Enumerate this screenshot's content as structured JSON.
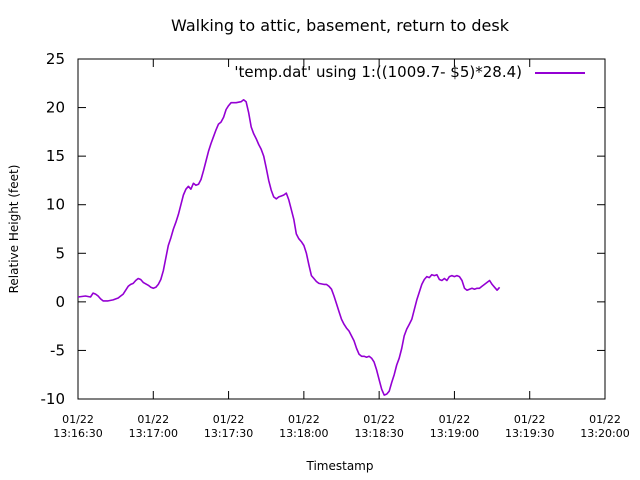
{
  "chart_data": {
    "type": "line",
    "title": "Walking to attic, basement, return to desk",
    "xlabel": "Timestamp",
    "ylabel": "Relative Height (feet)",
    "ylim": [
      -10,
      25
    ],
    "xlim": [
      "13:16:30",
      "13:20:00"
    ],
    "yticks": [
      "25",
      "20",
      "15",
      "10",
      "5",
      "0",
      "-5",
      "-10"
    ],
    "xticks": [
      {
        "date": "01/22",
        "time": "13:16:30"
      },
      {
        "date": "01/22",
        "time": "13:17:00"
      },
      {
        "date": "01/22",
        "time": "13:17:30"
      },
      {
        "date": "01/22",
        "time": "13:18:00"
      },
      {
        "date": "01/22",
        "time": "13:18:30"
      },
      {
        "date": "01/22",
        "time": "13:19:00"
      },
      {
        "date": "01/22",
        "time": "13:19:30"
      },
      {
        "date": "01/22",
        "time": "13:20:00"
      }
    ],
    "grid": false,
    "legend_position": "top-right",
    "series": [
      {
        "name": "'temp.dat'  using 1:((1009.7- $5)*28.4)",
        "color": "#9400d3",
        "points": [
          [
            "13:16:30",
            0.5
          ],
          [
            "13:16:33",
            0.6
          ],
          [
            "13:16:35",
            0.5
          ],
          [
            "13:16:36",
            0.9
          ],
          [
            "13:16:37",
            0.8
          ],
          [
            "13:16:38",
            0.6
          ],
          [
            "13:16:39",
            0.3
          ],
          [
            "13:16:40",
            0.1
          ],
          [
            "13:16:42",
            0.1
          ],
          [
            "13:16:44",
            0.2
          ],
          [
            "13:16:46",
            0.4
          ],
          [
            "13:16:47",
            0.6
          ],
          [
            "13:16:48",
            0.8
          ],
          [
            "13:16:49",
            1.2
          ],
          [
            "13:16:50",
            1.6
          ],
          [
            "13:16:51",
            1.8
          ],
          [
            "13:16:52",
            1.9
          ],
          [
            "13:16:53",
            2.2
          ],
          [
            "13:16:54",
            2.4
          ],
          [
            "13:16:55",
            2.3
          ],
          [
            "13:16:56",
            2.0
          ],
          [
            "13:16:58",
            1.7
          ],
          [
            "13:16:59",
            1.5
          ],
          [
            "13:17:00",
            1.4
          ],
          [
            "13:17:01",
            1.5
          ],
          [
            "13:17:02",
            1.8
          ],
          [
            "13:17:03",
            2.3
          ],
          [
            "13:17:04",
            3.2
          ],
          [
            "13:17:05",
            4.5
          ],
          [
            "13:17:06",
            5.8
          ],
          [
            "13:17:07",
            6.6
          ],
          [
            "13:17:08",
            7.5
          ],
          [
            "13:17:09",
            8.2
          ],
          [
            "13:17:10",
            9.0
          ],
          [
            "13:17:11",
            10.0
          ],
          [
            "13:17:12",
            11.0
          ],
          [
            "13:17:13",
            11.6
          ],
          [
            "13:17:14",
            11.9
          ],
          [
            "13:17:15",
            11.6
          ],
          [
            "13:17:16",
            12.2
          ],
          [
            "13:17:17",
            12.0
          ],
          [
            "13:17:18",
            12.1
          ],
          [
            "13:17:19",
            12.6
          ],
          [
            "13:17:20",
            13.5
          ],
          [
            "13:17:21",
            14.5
          ],
          [
            "13:17:22",
            15.5
          ],
          [
            "13:17:23",
            16.3
          ],
          [
            "13:17:24",
            17.0
          ],
          [
            "13:17:25",
            17.7
          ],
          [
            "13:17:26",
            18.3
          ],
          [
            "13:17:27",
            18.5
          ],
          [
            "13:17:28",
            19.0
          ],
          [
            "13:17:29",
            19.8
          ],
          [
            "13:17:30",
            20.2
          ],
          [
            "13:17:31",
            20.5
          ],
          [
            "13:17:33",
            20.5
          ],
          [
            "13:17:35",
            20.6
          ],
          [
            "13:17:36",
            20.8
          ],
          [
            "13:17:37",
            20.6
          ],
          [
            "13:17:38",
            19.5
          ],
          [
            "13:17:39",
            18.0
          ],
          [
            "13:17:40",
            17.3
          ],
          [
            "13:17:41",
            16.8
          ],
          [
            "13:17:42",
            16.2
          ],
          [
            "13:17:43",
            15.7
          ],
          [
            "13:17:44",
            15.0
          ],
          [
            "13:17:45",
            13.8
          ],
          [
            "13:17:46",
            12.5
          ],
          [
            "13:17:47",
            11.5
          ],
          [
            "13:17:48",
            10.8
          ],
          [
            "13:17:49",
            10.6
          ],
          [
            "13:17:50",
            10.8
          ],
          [
            "13:17:51",
            10.9
          ],
          [
            "13:17:52",
            11.0
          ],
          [
            "13:17:53",
            11.2
          ],
          [
            "13:17:54",
            10.5
          ],
          [
            "13:17:55",
            9.5
          ],
          [
            "13:17:56",
            8.5
          ],
          [
            "13:17:57",
            7.0
          ],
          [
            "13:17:58",
            6.5
          ],
          [
            "13:17:59",
            6.2
          ],
          [
            "13:18:00",
            5.8
          ],
          [
            "13:18:01",
            5.0
          ],
          [
            "13:18:02",
            3.8
          ],
          [
            "13:18:03",
            2.7
          ],
          [
            "13:18:04",
            2.4
          ],
          [
            "13:18:05",
            2.1
          ],
          [
            "13:18:06",
            1.9
          ],
          [
            "13:18:08",
            1.8
          ],
          [
            "13:18:09",
            1.8
          ],
          [
            "13:18:10",
            1.6
          ],
          [
            "13:18:11",
            1.3
          ],
          [
            "13:18:12",
            0.6
          ],
          [
            "13:18:13",
            -0.2
          ],
          [
            "13:18:14",
            -1.0
          ],
          [
            "13:18:15",
            -1.8
          ],
          [
            "13:18:16",
            -2.3
          ],
          [
            "13:18:17",
            -2.7
          ],
          [
            "13:18:18",
            -3.0
          ],
          [
            "13:18:19",
            -3.5
          ],
          [
            "13:18:20",
            -4.0
          ],
          [
            "13:18:21",
            -4.8
          ],
          [
            "13:18:22",
            -5.4
          ],
          [
            "13:18:23",
            -5.6
          ],
          [
            "13:18:24",
            -5.6
          ],
          [
            "13:18:25",
            -5.7
          ],
          [
            "13:18:26",
            -5.6
          ],
          [
            "13:18:27",
            -5.8
          ],
          [
            "13:18:28",
            -6.2
          ],
          [
            "13:18:29",
            -7.0
          ],
          [
            "13:18:30",
            -8.0
          ],
          [
            "13:18:31",
            -9.0
          ],
          [
            "13:18:32",
            -9.6
          ],
          [
            "13:18:33",
            -9.5
          ],
          [
            "13:18:34",
            -9.2
          ],
          [
            "13:18:35",
            -8.3
          ],
          [
            "13:18:36",
            -7.5
          ],
          [
            "13:18:37",
            -6.5
          ],
          [
            "13:18:38",
            -5.8
          ],
          [
            "13:18:39",
            -4.8
          ],
          [
            "13:18:40",
            -3.5
          ],
          [
            "13:18:41",
            -2.8
          ],
          [
            "13:18:42",
            -2.3
          ],
          [
            "13:18:43",
            -1.8
          ],
          [
            "13:18:44",
            -0.8
          ],
          [
            "13:18:45",
            0.2
          ],
          [
            "13:18:46",
            1.0
          ],
          [
            "13:18:47",
            1.8
          ],
          [
            "13:18:48",
            2.3
          ],
          [
            "13:18:49",
            2.6
          ],
          [
            "13:18:50",
            2.5
          ],
          [
            "13:18:51",
            2.8
          ],
          [
            "13:18:52",
            2.7
          ],
          [
            "13:18:53",
            2.8
          ],
          [
            "13:18:54",
            2.3
          ],
          [
            "13:18:55",
            2.2
          ],
          [
            "13:18:56",
            2.4
          ],
          [
            "13:18:57",
            2.2
          ],
          [
            "13:18:58",
            2.6
          ],
          [
            "13:18:59",
            2.7
          ],
          [
            "13:19:00",
            2.6
          ],
          [
            "13:19:01",
            2.7
          ],
          [
            "13:19:02",
            2.6
          ],
          [
            "13:19:03",
            2.2
          ],
          [
            "13:19:04",
            1.4
          ],
          [
            "13:19:05",
            1.2
          ],
          [
            "13:19:06",
            1.3
          ],
          [
            "13:19:07",
            1.4
          ],
          [
            "13:19:08",
            1.3
          ],
          [
            "13:19:09",
            1.4
          ],
          [
            "13:19:10",
            1.4
          ],
          [
            "13:19:11",
            1.6
          ],
          [
            "13:19:12",
            1.8
          ],
          [
            "13:19:13",
            2.0
          ],
          [
            "13:19:14",
            2.2
          ],
          [
            "13:19:15",
            1.8
          ],
          [
            "13:19:16",
            1.5
          ],
          [
            "13:19:17",
            1.2
          ],
          [
            "13:19:18",
            1.5
          ]
        ]
      }
    ]
  }
}
